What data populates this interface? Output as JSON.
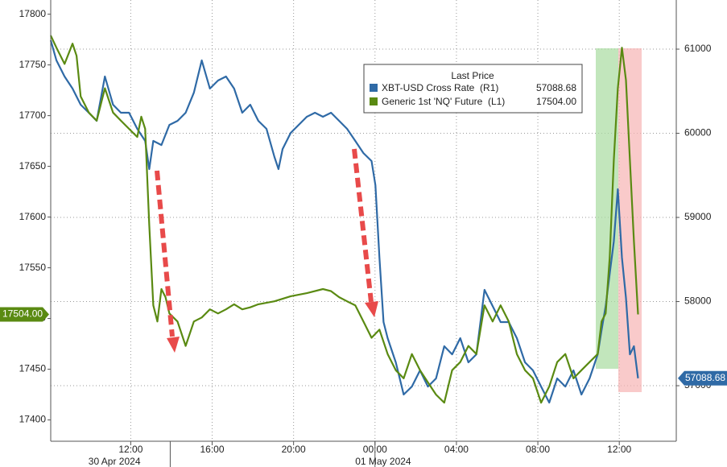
{
  "chart_data": {
    "type": "line",
    "legend_title": "Last Price",
    "legend": "top-right",
    "xlim": [
      8.07,
      38.8
    ],
    "xticks": [
      {
        "value": 12,
        "label": "12:00"
      },
      {
        "value": 16,
        "label": "16:00"
      },
      {
        "value": 20,
        "label": "20:00"
      },
      {
        "value": 24,
        "label": "00:00"
      },
      {
        "value": 28,
        "label": "04:00"
      },
      {
        "value": 32,
        "label": "08:00"
      },
      {
        "value": 36,
        "label": "12:00"
      }
    ],
    "date_ticks": [
      {
        "value": 11.2,
        "label": "30 Apr 2024"
      },
      {
        "value": 24.4,
        "label": "01 May 2024"
      }
    ],
    "day_breaks": [
      13.94,
      24
    ],
    "ylim": [
      17379,
      17814
    ],
    "yticks": [
      17400,
      17450,
      17500,
      17550,
      17600,
      17650,
      17700,
      17750,
      17800
    ],
    "y2lim": [
      56340,
      61584
    ],
    "y2ticks": [
      57000,
      58000,
      59000,
      60000,
      61000
    ],
    "grid": true,
    "series": [
      {
        "name": "XBT-USD Cross Rate  (R1)",
        "color": "#2f6aa6",
        "axis": "y2",
        "last": {
          "value": 57088.68,
          "label": "57088.68"
        },
        "x": [
          8.07,
          8.35,
          8.75,
          9.14,
          9.54,
          9.94,
          10.33,
          10.73,
          11.13,
          11.52,
          11.92,
          12.32,
          12.71,
          12.91,
          13.11,
          13.51,
          13.9,
          14.3,
          14.7,
          15.1,
          15.49,
          15.89,
          16.29,
          16.68,
          17.08,
          17.48,
          17.87,
          18.27,
          18.67,
          19.06,
          19.26,
          19.46,
          19.86,
          20.25,
          20.65,
          21.05,
          21.44,
          21.84,
          22.24,
          22.63,
          23.03,
          23.43,
          23.83,
          24.02,
          24.22,
          24.42,
          24.62,
          25.02,
          25.41,
          25.81,
          26.21,
          26.6,
          27.0,
          27.4,
          27.79,
          28.19,
          28.59,
          28.98,
          29.38,
          29.78,
          30.17,
          30.57,
          30.97,
          31.37,
          31.76,
          32.16,
          32.56,
          32.95,
          33.35,
          33.75,
          34.14,
          34.54,
          34.94,
          35.13,
          35.33,
          35.53,
          35.73,
          35.93,
          36.13,
          36.33,
          36.52,
          36.72,
          36.92
        ],
        "values": [
          61105,
          60866,
          60675,
          60531,
          60340,
          60244,
          60148,
          60675,
          60340,
          60244,
          60244,
          60053,
          59909,
          59574,
          59909,
          59861,
          60100,
          60148,
          60244,
          60483,
          60866,
          60531,
          60627,
          60675,
          60531,
          60244,
          60340,
          60148,
          60053,
          59718,
          59574,
          59813,
          60005,
          60100,
          60196,
          60244,
          60196,
          60244,
          60148,
          60053,
          59909,
          59765,
          59670,
          59383,
          58522,
          57756,
          57565,
          57278,
          56895,
          56990,
          57182,
          56990,
          57086,
          57469,
          57373,
          57565,
          57278,
          57373,
          58139,
          57947,
          57756,
          57756,
          57565,
          57278,
          57182,
          56990,
          56799,
          57086,
          56990,
          57182,
          56895,
          57086,
          57373,
          57660,
          57947,
          58330,
          58713,
          59335,
          58522,
          58043,
          57373,
          57469,
          57088.68
        ]
      },
      {
        "name": "Generic 1st 'NQ' Future  (L1)",
        "color": "#5a8a12",
        "axis": "y",
        "last": {
          "value": 17504,
          "label": "17504.00"
        },
        "x": [
          8.07,
          8.35,
          8.75,
          9.14,
          9.34,
          9.54,
          9.94,
          10.33,
          10.73,
          11.13,
          11.52,
          11.92,
          12.32,
          12.52,
          12.71,
          12.91,
          13.11,
          13.31,
          13.51,
          13.71,
          13.9,
          14.3,
          14.7,
          15.1,
          15.49,
          15.89,
          16.29,
          16.68,
          17.08,
          17.48,
          17.87,
          18.27,
          19.06,
          19.86,
          20.65,
          21.44,
          21.84,
          22.24,
          22.63,
          23.03,
          23.43,
          23.83,
          24.22,
          24.62,
          25.02,
          25.41,
          25.81,
          26.21,
          26.6,
          27.0,
          27.4,
          27.79,
          28.19,
          28.59,
          28.98,
          29.38,
          29.78,
          30.17,
          30.57,
          30.97,
          31.37,
          31.76,
          32.16,
          32.56,
          32.95,
          33.35,
          33.75,
          34.14,
          34.54,
          34.94,
          35.13,
          35.33,
          35.53,
          35.73,
          35.93,
          36.13,
          36.33,
          36.52,
          36.72,
          36.92
        ],
        "values": [
          17779,
          17767,
          17751,
          17771,
          17759,
          17719,
          17703,
          17695,
          17727,
          17703,
          17695,
          17687,
          17679,
          17699,
          17687,
          17592,
          17513,
          17497,
          17529,
          17521,
          17505,
          17497,
          17473,
          17497,
          17501,
          17509,
          17505,
          17509,
          17514,
          17509,
          17511,
          17514,
          17517,
          17522,
          17525,
          17529,
          17527,
          17521,
          17517,
          17513,
          17497,
          17481,
          17489,
          17465,
          17449,
          17441,
          17465,
          17449,
          17437,
          17425,
          17417,
          17449,
          17457,
          17473,
          17465,
          17513,
          17497,
          17513,
          17497,
          17465,
          17449,
          17441,
          17417,
          17433,
          17457,
          17465,
          17441,
          17449,
          17457,
          17465,
          17497,
          17505,
          17560,
          17656,
          17727,
          17767,
          17735,
          17656,
          17576,
          17504
        ]
      }
    ]
  }
}
